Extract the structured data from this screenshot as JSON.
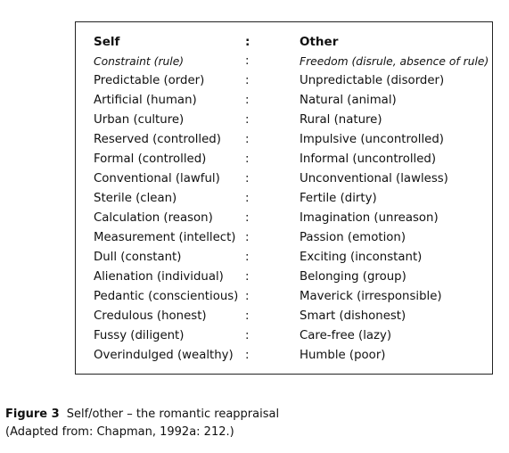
{
  "table": {
    "header": {
      "self": "Self",
      "sep": ":",
      "other": "Other"
    },
    "rows": [
      {
        "self": "Constraint (rule)",
        "sep": ":",
        "other": "Freedom (disrule, absence of rule)",
        "italic": true
      },
      {
        "self": "Predictable (order)",
        "sep": ":",
        "other": "Unpredictable (disorder)"
      },
      {
        "self": "Artificial (human)",
        "sep": ":",
        "other": "Natural (animal)"
      },
      {
        "self": "Urban (culture)",
        "sep": ":",
        "other": "Rural (nature)"
      },
      {
        "self": "Reserved (controlled)",
        "sep": ":",
        "other": "Impulsive (uncontrolled)"
      },
      {
        "self": "Formal (controlled)",
        "sep": ":",
        "other": "Informal (uncontrolled)"
      },
      {
        "self": "Conventional (lawful)",
        "sep": ":",
        "other": "Unconventional (lawless)"
      },
      {
        "self": "Sterile (clean)",
        "sep": ":",
        "other": "Fertile (dirty)"
      },
      {
        "self": "Calculation (reason)",
        "sep": ":",
        "other": "Imagination (unreason)"
      },
      {
        "self": "Measurement (intellect)",
        "sep": ":",
        "other": "Passion (emotion)"
      },
      {
        "self": "Dull (constant)",
        "sep": ":",
        "other": "Exciting (inconstant)"
      },
      {
        "self": "Alienation (individual)",
        "sep": ":",
        "other": "Belonging (group)"
      },
      {
        "self": "Pedantic (conscientious)",
        "sep": ":",
        "other": "Maverick (irresponsible)"
      },
      {
        "self": "Credulous (honest)",
        "sep": ":",
        "other": "Smart (dishonest)"
      },
      {
        "self": "Fussy (diligent)",
        "sep": ":",
        "other": "Care-free (lazy)"
      },
      {
        "self": "Overindulged (wealthy)",
        "sep": ":",
        "other": "Humble (poor)"
      }
    ]
  },
  "caption": {
    "label": "Figure 3",
    "title": "Self/other – the romantic reappraisal",
    "source": "(Adapted from: Chapman, 1992a: 212.)"
  }
}
